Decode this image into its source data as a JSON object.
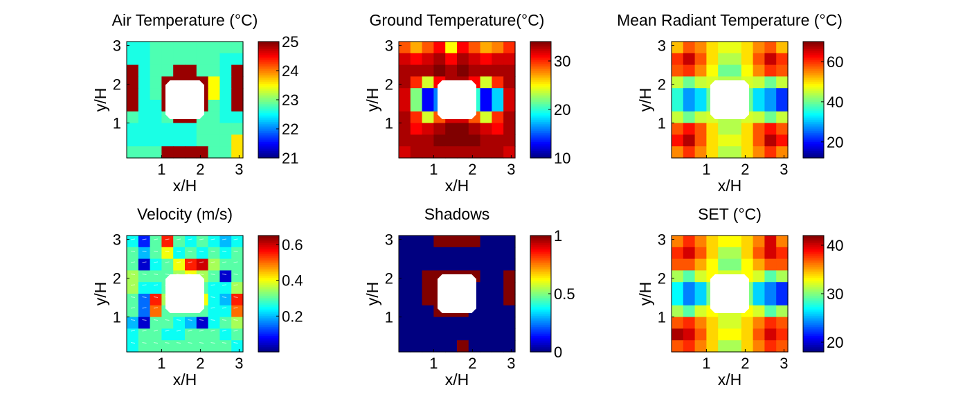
{
  "figure": {
    "background": "#ffffff",
    "colormap": "jet",
    "opening_color": "#ffffff"
  },
  "chart_data": [
    {
      "type": "heatmap",
      "title": "Air Temperature (°C)",
      "xlabel": "x/H",
      "ylabel": "y/H",
      "xticks": [
        "1",
        "2",
        "3"
      ],
      "yticks": [
        "1",
        "2",
        "3"
      ],
      "xlim": [
        0.1,
        3.1
      ],
      "ylim": [
        0.1,
        3.1
      ],
      "colorbar": {
        "range": [
          21,
          25
        ],
        "ticks": [
          "21",
          "22",
          "23",
          "24",
          "25"
        ]
      },
      "values": [
        [
          22.6,
          22.6,
          22.8,
          22.8,
          22.8,
          22.8,
          22.8,
          22.8,
          22.8,
          22.8
        ],
        [
          22.6,
          22.6,
          22.8,
          22.8,
          22.8,
          22.8,
          22.8,
          22.8,
          22.6,
          22.6
        ],
        [
          24.9,
          22.6,
          22.8,
          22.8,
          24.9,
          24.9,
          22.8,
          22.8,
          22.6,
          24.9
        ],
        [
          24.9,
          22.6,
          22.8,
          24.9,
          24.9,
          24.9,
          24.9,
          23.5,
          22.6,
          24.9
        ],
        [
          24.9,
          22.6,
          22.8,
          24.9,
          24.9,
          24.9,
          24.9,
          23.5,
          22.6,
          24.9
        ],
        [
          24.9,
          22.6,
          22.6,
          24.9,
          24.9,
          24.9,
          24.9,
          22.8,
          22.6,
          24.9
        ],
        [
          22.8,
          22.6,
          22.6,
          22.8,
          24.9,
          24.9,
          22.8,
          22.8,
          22.6,
          22.6
        ],
        [
          22.6,
          22.6,
          22.6,
          22.6,
          22.6,
          22.6,
          22.8,
          22.8,
          22.8,
          22.8
        ],
        [
          22.6,
          22.6,
          22.6,
          22.6,
          22.6,
          22.6,
          22.8,
          22.8,
          22.8,
          23.6
        ],
        [
          22.8,
          22.8,
          22.8,
          24.9,
          24.9,
          24.9,
          24.9,
          22.8,
          22.8,
          23.6
        ]
      ]
    },
    {
      "type": "heatmap",
      "title": "Ground Temperature(°C)",
      "xlabel": "x/H",
      "ylabel": "y/H",
      "xticks": [
        "1",
        "2",
        "3"
      ],
      "yticks": [
        "1",
        "2",
        "3"
      ],
      "xlim": [
        0.1,
        3.1
      ],
      "ylim": [
        0.1,
        3.1
      ],
      "colorbar": {
        "range": [
          10,
          34
        ],
        "ticks": [
          "10",
          "20",
          "30"
        ]
      },
      "values": [
        [
          29,
          27,
          29,
          31,
          25,
          31,
          29,
          27,
          28,
          30
        ],
        [
          32,
          31,
          32,
          33,
          31,
          33,
          32,
          31,
          32,
          32
        ],
        [
          33,
          33,
          33,
          34,
          33,
          34,
          33,
          33,
          33,
          33
        ],
        [
          33,
          30,
          24,
          31,
          33,
          33,
          31,
          24,
          30,
          33
        ],
        [
          32,
          22,
          13,
          16,
          33,
          33,
          20,
          13,
          18,
          32
        ],
        [
          32,
          22,
          13,
          16,
          33,
          33,
          20,
          13,
          18,
          32
        ],
        [
          33,
          30,
          24,
          29,
          32,
          32,
          29,
          24,
          30,
          33
        ],
        [
          33,
          31,
          32,
          33,
          34,
          34,
          33,
          32,
          31,
          33
        ],
        [
          33,
          33,
          33,
          34,
          34,
          34,
          34,
          33,
          33,
          33
        ],
        [
          32,
          33,
          33,
          33,
          33,
          33,
          33,
          33,
          33,
          32
        ]
      ]
    },
    {
      "type": "heatmap",
      "title": "Mean Radiant Temperature (°C)",
      "xlabel": "x/H",
      "ylabel": "y/H",
      "xticks": [
        "1",
        "2",
        "3"
      ],
      "yticks": [
        "1",
        "2",
        "3"
      ],
      "xlim": [
        0.1,
        3.1
      ],
      "ylim": [
        0.1,
        3.1
      ],
      "colorbar": {
        "range": [
          12,
          70
        ],
        "ticks": [
          "20",
          "40",
          "60"
        ]
      },
      "values": [
        [
          52,
          58,
          55,
          50,
          47,
          47,
          50,
          55,
          58,
          52
        ],
        [
          60,
          66,
          58,
          50,
          44,
          44,
          50,
          58,
          66,
          60
        ],
        [
          58,
          60,
          55,
          48,
          40,
          40,
          48,
          55,
          60,
          58
        ],
        [
          45,
          40,
          45,
          46,
          44,
          44,
          46,
          45,
          40,
          45
        ],
        [
          36,
          28,
          32,
          40,
          44,
          44,
          40,
          32,
          28,
          22
        ],
        [
          36,
          28,
          32,
          40,
          44,
          44,
          40,
          32,
          28,
          22
        ],
        [
          45,
          40,
          45,
          46,
          44,
          44,
          46,
          45,
          40,
          45
        ],
        [
          58,
          62,
          58,
          50,
          44,
          44,
          50,
          58,
          62,
          58
        ],
        [
          62,
          67,
          58,
          50,
          47,
          47,
          50,
          58,
          67,
          62
        ],
        [
          55,
          60,
          55,
          50,
          44,
          44,
          50,
          55,
          60,
          55
        ]
      ]
    },
    {
      "type": "heatmap",
      "title": "Velocity (m/s)",
      "xlabel": "x/H",
      "ylabel": "y/H",
      "xticks": [
        "1",
        "2",
        "3"
      ],
      "yticks": [
        "1",
        "2",
        "3"
      ],
      "xlim": [
        0.1,
        3.1
      ],
      "ylim": [
        0.1,
        3.1
      ],
      "colorbar": {
        "range": [
          0,
          0.65
        ],
        "ticks": [
          "0.2",
          "0.4",
          "0.6"
        ]
      },
      "values": [
        [
          0.25,
          0.1,
          0.3,
          0.55,
          0.3,
          0.25,
          0.3,
          0.25,
          0.2,
          0.25
        ],
        [
          0.3,
          0.2,
          0.3,
          0.4,
          0.25,
          0.3,
          0.25,
          0.3,
          0.25,
          0.3
        ],
        [
          0.3,
          0.05,
          0.25,
          0.3,
          0.4,
          0.55,
          0.6,
          0.35,
          0.3,
          0.3
        ],
        [
          0.35,
          0.3,
          0.3,
          0.3,
          0.35,
          0.4,
          0.35,
          0.3,
          0.05,
          0.3
        ],
        [
          0.35,
          0.25,
          0.25,
          0.3,
          0.3,
          0.3,
          0.3,
          0.25,
          0.25,
          0.35
        ],
        [
          0.3,
          0.15,
          0.55,
          0.35,
          0.3,
          0.3,
          0.4,
          0.25,
          0.2,
          0.55
        ],
        [
          0.3,
          0.15,
          0.5,
          0.3,
          0.3,
          0.3,
          0.3,
          0.25,
          0.25,
          0.5
        ],
        [
          0.2,
          0.05,
          0.3,
          0.3,
          0.25,
          0.2,
          0.05,
          0.25,
          0.3,
          0.35
        ],
        [
          0.25,
          0.3,
          0.3,
          0.25,
          0.25,
          0.3,
          0.3,
          0.3,
          0.25,
          0.3
        ],
        [
          0.25,
          0.3,
          0.3,
          0.3,
          0.3,
          0.3,
          0.3,
          0.3,
          0.3,
          0.25
        ]
      ]
    },
    {
      "type": "heatmap",
      "title": "Shadows",
      "xlabel": "x/H",
      "ylabel": "y/H",
      "xticks": [
        "1",
        "2",
        "3"
      ],
      "yticks": [
        "1",
        "2",
        "3"
      ],
      "xlim": [
        0.1,
        3.1
      ],
      "ylim": [
        0.1,
        3.1
      ],
      "colorbar": {
        "range": [
          0,
          1
        ],
        "ticks": [
          "0",
          "0.5",
          "1"
        ]
      },
      "values": [
        [
          0,
          0,
          0,
          1,
          1,
          1,
          1,
          0,
          0,
          0
        ],
        [
          0,
          0,
          0,
          0,
          0,
          0,
          0,
          0,
          0,
          0
        ],
        [
          0,
          0,
          0,
          0,
          0,
          0,
          0,
          0,
          0,
          0
        ],
        [
          0,
          0,
          1,
          1,
          1,
          1,
          1,
          0,
          0,
          1
        ],
        [
          0,
          0,
          1,
          1,
          1,
          1,
          0,
          0,
          0,
          1
        ],
        [
          0,
          0,
          1,
          1,
          1,
          1,
          0,
          0,
          0,
          1
        ],
        [
          0,
          0,
          0,
          1,
          1,
          1,
          0,
          0,
          0,
          0
        ],
        [
          0,
          0,
          0,
          0,
          0,
          0,
          0,
          0,
          0,
          0
        ],
        [
          0,
          0,
          0,
          0,
          0,
          0,
          0,
          0,
          0,
          0
        ],
        [
          0,
          0,
          0,
          0,
          0,
          1,
          0,
          0,
          0,
          0
        ]
      ]
    },
    {
      "type": "heatmap",
      "title": "SET (°C)",
      "xlabel": "x/H",
      "ylabel": "y/H",
      "xticks": [
        "1",
        "2",
        "3"
      ],
      "yticks": [
        "1",
        "2",
        "3"
      ],
      "xlim": [
        0.1,
        3.1
      ],
      "ylim": [
        0.1,
        3.1
      ],
      "colorbar": {
        "range": [
          18,
          42
        ],
        "ticks": [
          "20",
          "30",
          "40"
        ]
      },
      "values": [
        [
          36,
          38,
          36,
          34,
          33,
          33,
          34,
          36,
          40,
          36
        ],
        [
          38,
          40,
          37,
          34,
          31,
          31,
          34,
          37,
          40,
          38
        ],
        [
          37,
          37,
          35,
          33,
          30,
          30,
          33,
          35,
          37,
          37
        ],
        [
          31,
          29,
          32,
          33,
          32,
          32,
          33,
          32,
          29,
          31
        ],
        [
          27,
          24,
          26,
          30,
          32,
          32,
          30,
          26,
          24,
          22
        ],
        [
          27,
          24,
          26,
          30,
          32,
          32,
          30,
          26,
          24,
          22
        ],
        [
          31,
          29,
          32,
          33,
          32,
          32,
          33,
          32,
          29,
          31
        ],
        [
          37,
          38,
          36,
          34,
          32,
          32,
          34,
          36,
          38,
          37
        ],
        [
          41,
          40,
          37,
          34,
          33,
          33,
          34,
          37,
          40,
          38
        ],
        [
          37,
          38,
          36,
          34,
          31,
          31,
          34,
          36,
          38,
          37
        ]
      ]
    }
  ]
}
